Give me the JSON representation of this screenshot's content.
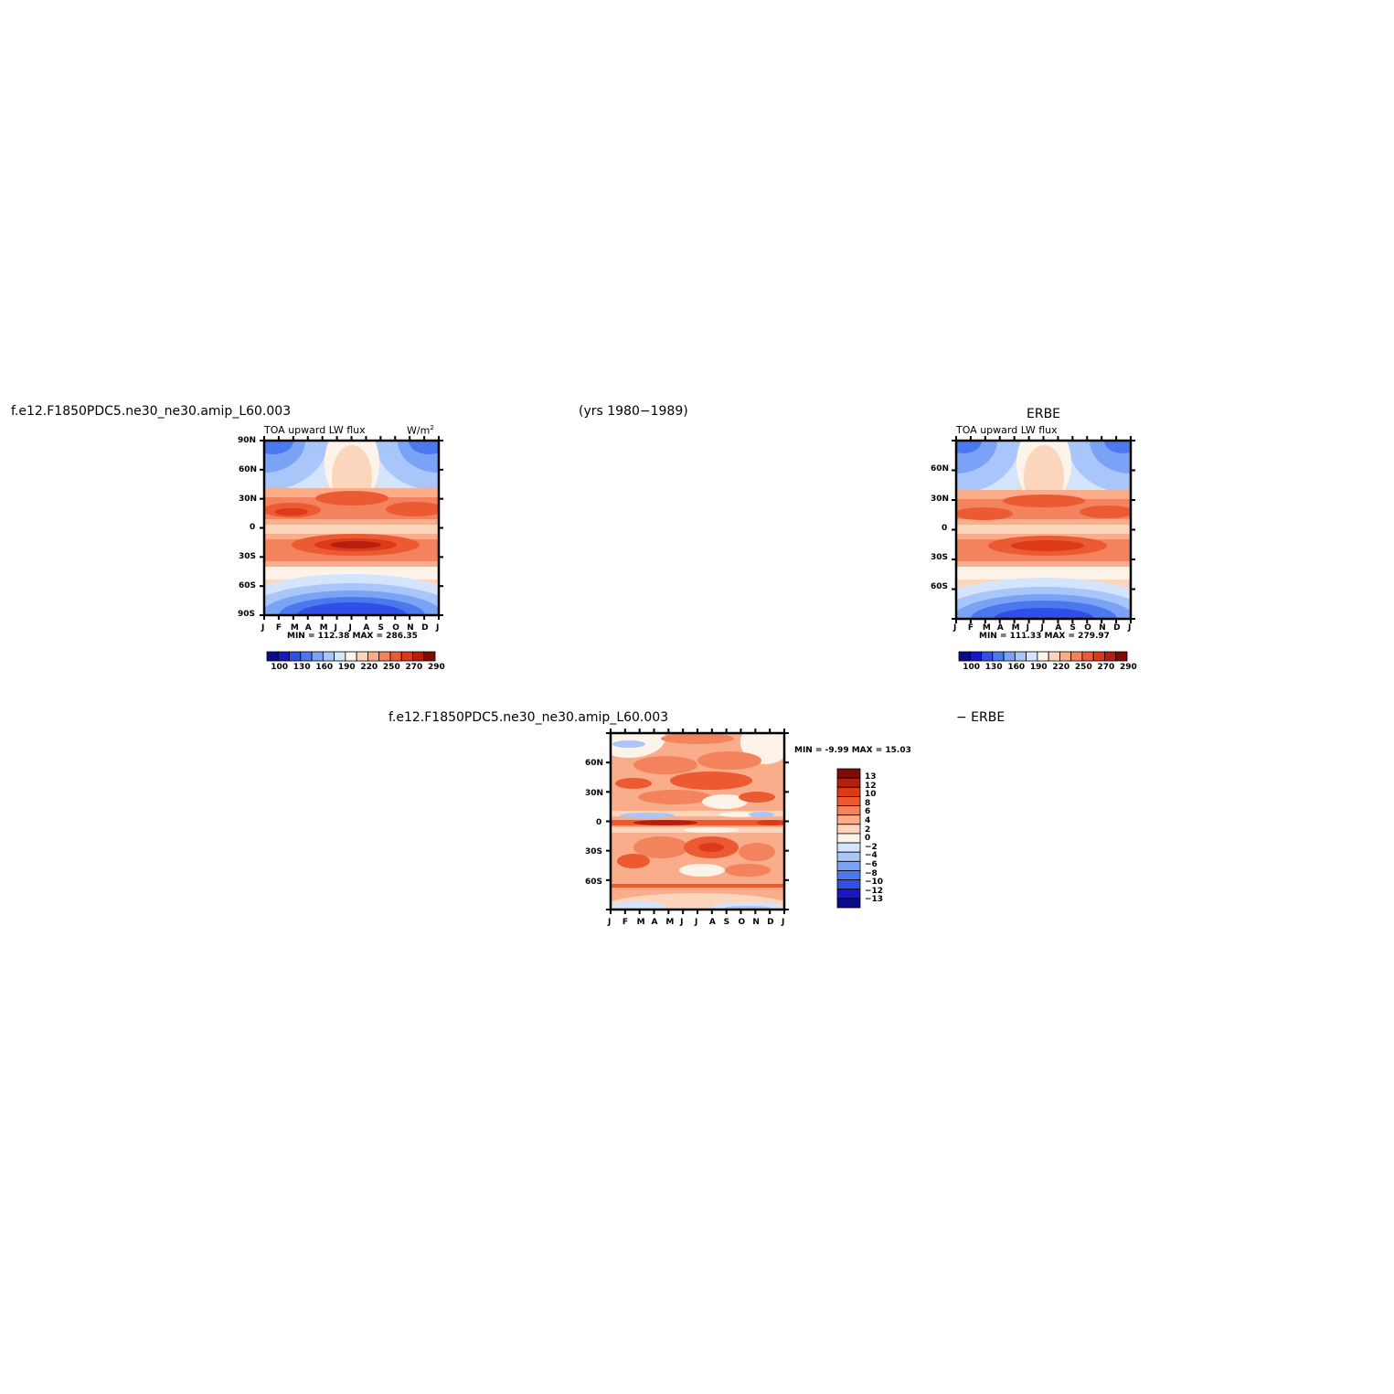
{
  "header": {
    "case_left": "f.e12.F1850PDC5.ne30_ne30.amip_L60.003",
    "years": "(yrs 1980−1989)",
    "obs_right": "ERBE"
  },
  "colors": {
    "scale": [
      "#0b0b8e",
      "#1717c4",
      "#2f4fe6",
      "#4a78ee",
      "#7aa2f5",
      "#a9c6fb",
      "#d4e4fd",
      "#fdf3e8",
      "#fcd5bd",
      "#f9ad8a",
      "#f3835c",
      "#ec5a33",
      "#dc3a19",
      "#b51f0e",
      "#800b06"
    ]
  },
  "chart_data": [
    {
      "type": "heatmap",
      "title": "TOA upward LW flux",
      "units_label": "W/m",
      "units_sup": "2",
      "x_ticks": [
        "J",
        "F",
        "M",
        "A",
        "M",
        "J",
        "J",
        "A",
        "S",
        "O",
        "N",
        "D",
        "J"
      ],
      "y_ticks": [
        "90N",
        "60N",
        "30N",
        "0",
        "30S",
        "60S",
        "90S"
      ],
      "stats": "MIN = 112.38  MAX = 286.35",
      "colorbar_labels": [
        "100",
        "130",
        "160",
        "190",
        "220",
        "250",
        "270",
        "290"
      ]
    },
    {
      "type": "heatmap",
      "title": "TOA upward LW flux",
      "units_label": "",
      "x_ticks": [
        "J",
        "F",
        "M",
        "A",
        "M",
        "J",
        "J",
        "A",
        "S",
        "O",
        "N",
        "D",
        "J"
      ],
      "y_ticks": [
        "60N",
        "30N",
        "0",
        "30S",
        "60S"
      ],
      "stats": "MIN = 111.33  MAX = 279.97",
      "colorbar_labels": [
        "100",
        "130",
        "160",
        "190",
        "220",
        "250",
        "270",
        "290"
      ]
    },
    {
      "type": "heatmap",
      "title_left": "f.e12.F1850PDC5.ne30_ne30.amip_L60.003",
      "title_right": "− ERBE",
      "x_ticks": [
        "J",
        "F",
        "M",
        "A",
        "M",
        "J",
        "J",
        "A",
        "S",
        "O",
        "N",
        "D",
        "J"
      ],
      "y_ticks": [
        "60N",
        "30N",
        "0",
        "30S",
        "60S"
      ],
      "stats": "MIN =   -9.99  MAX =   15.03",
      "colorbar_labels": [
        "13",
        "12",
        "10",
        "8",
        "6",
        "4",
        "2",
        "0",
        "−2",
        "−4",
        "−6",
        "−8",
        "−10",
        "−12",
        "−13"
      ]
    }
  ]
}
